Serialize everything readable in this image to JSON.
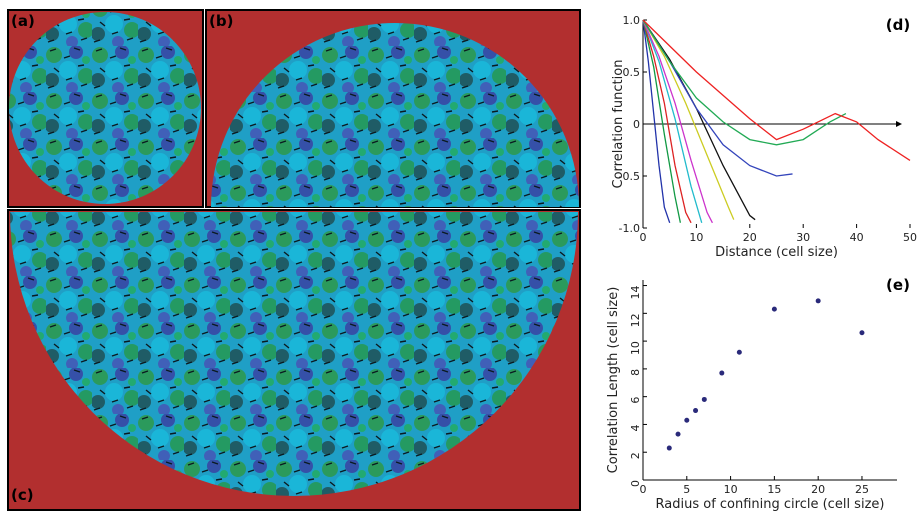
{
  "panels": [
    "(a)",
    "(b)",
    "(c)"
  ],
  "chart_data": [
    {
      "type": "line",
      "label": "(d)",
      "x_label": "Distance (cell size)",
      "y_label": "Correlation function",
      "xlim": [
        0,
        50
      ],
      "ylim": [
        -1,
        1
      ],
      "xticks": [
        0,
        10,
        20,
        30,
        40,
        50
      ],
      "yticks": [
        {
          "value": 1,
          "label": "1.0"
        },
        0.5,
        0,
        -0.5,
        {
          "value": -1,
          "label": "-1.0"
        }
      ],
      "series": [
        {
          "color": "#2233aa",
          "x": [
            0,
            1,
            2,
            3,
            4,
            5
          ],
          "values": [
            1,
            0.6,
            0.1,
            -0.4,
            -0.8,
            -0.95
          ]
        },
        {
          "color": "#119944",
          "x": [
            0,
            2,
            4,
            6,
            7
          ],
          "values": [
            1,
            0.55,
            -0.1,
            -0.7,
            -0.95
          ]
        },
        {
          "color": "#dd2222",
          "x": [
            0,
            2,
            4,
            6,
            8,
            9
          ],
          "values": [
            1,
            0.65,
            0.2,
            -0.4,
            -0.85,
            -0.95
          ]
        },
        {
          "color": "#22bbcc",
          "x": [
            0,
            3,
            6,
            9,
            11
          ],
          "values": [
            1,
            0.6,
            0.05,
            -0.6,
            -0.95
          ]
        },
        {
          "color": "#cc33cc",
          "x": [
            0,
            3,
            6,
            9,
            12,
            13
          ],
          "values": [
            1,
            0.65,
            0.2,
            -0.35,
            -0.85,
            -0.95
          ]
        },
        {
          "color": "#cccc22",
          "x": [
            0,
            4,
            8,
            12,
            16,
            17
          ],
          "values": [
            1,
            0.65,
            0.2,
            -0.3,
            -0.8,
            -0.92
          ]
        },
        {
          "color": "#111111",
          "x": [
            0,
            5,
            10,
            15,
            20,
            21
          ],
          "values": [
            1,
            0.62,
            0.15,
            -0.4,
            -0.88,
            -0.92
          ]
        },
        {
          "color": "#3344bb",
          "x": [
            0,
            5,
            10,
            15,
            20,
            25,
            28
          ],
          "values": [
            1,
            0.6,
            0.15,
            -0.2,
            -0.4,
            -0.5,
            -0.48
          ]
        },
        {
          "color": "#22aa55",
          "x": [
            0,
            5,
            10,
            15,
            20,
            25,
            30,
            35,
            38
          ],
          "values": [
            1,
            0.6,
            0.25,
            0.02,
            -0.15,
            -0.2,
            -0.15,
            0.02,
            0.1
          ]
        },
        {
          "color": "#ee2222",
          "x": [
            0,
            10,
            20,
            25,
            30,
            36,
            40,
            44,
            50
          ],
          "values": [
            1,
            0.5,
            0.05,
            -0.15,
            -0.05,
            0.1,
            0.02,
            -0.15,
            -0.35
          ]
        }
      ]
    },
    {
      "type": "scatter",
      "label": "(e)",
      "x_label": "Radius of confining circle (cell size)",
      "y_label": "Correlation Length (cell size)",
      "xlim": [
        0,
        29
      ],
      "ylim": [
        0,
        14.4
      ],
      "xticks": [
        0,
        5,
        10,
        15,
        20,
        25
      ],
      "yticks": [
        0,
        2,
        4,
        6,
        8,
        10,
        12,
        14
      ],
      "color": "#2a2a7a",
      "x": [
        3,
        4,
        5,
        6,
        7,
        9,
        11,
        15,
        20,
        25
      ],
      "values": [
        2.3,
        3.3,
        4.3,
        5,
        5.8,
        7.7,
        9.2,
        12.3,
        12.9,
        10.6
      ]
    }
  ]
}
